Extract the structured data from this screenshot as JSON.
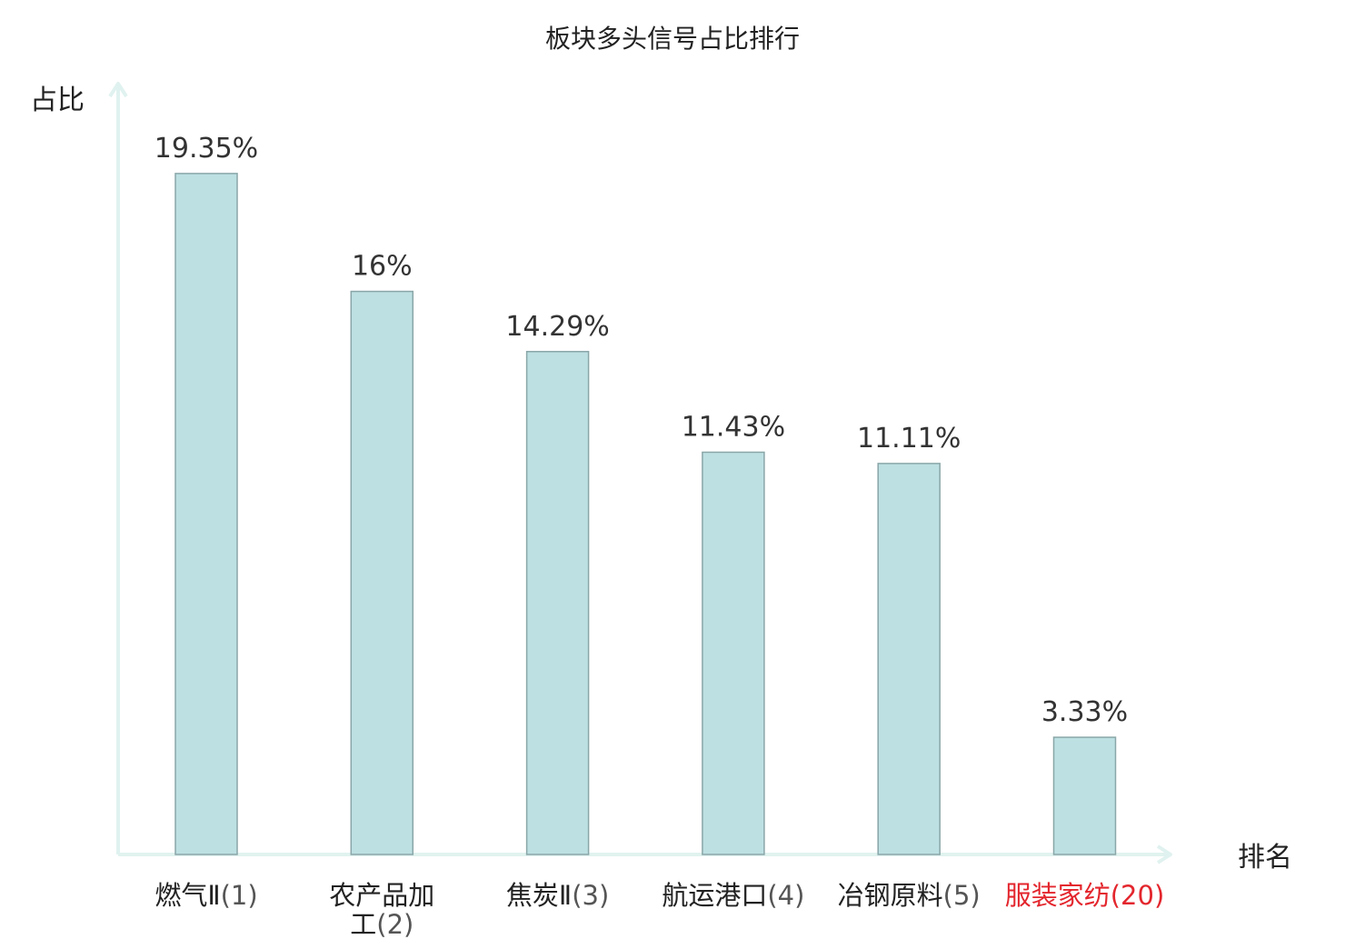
{
  "chart_data": {
    "type": "bar",
    "title": "板块多头信号占比排行",
    "xlabel": "排名",
    "ylabel": "占比",
    "ylim": [
      0,
      21
    ],
    "grid": false,
    "categories": [
      {
        "name": "燃气Ⅱ",
        "rank": "(1)",
        "highlight": false
      },
      {
        "name": "农产品加工",
        "rank": "(2)",
        "highlight": false
      },
      {
        "name": "焦炭Ⅱ",
        "rank": "(3)",
        "highlight": false
      },
      {
        "name": "航运港口",
        "rank": "(4)",
        "highlight": false
      },
      {
        "name": "冶钢原料",
        "rank": "(5)",
        "highlight": false
      },
      {
        "name": "服装家纺",
        "rank": "(20)",
        "highlight": true
      }
    ],
    "values": [
      19.35,
      16,
      14.29,
      11.43,
      11.11,
      3.33
    ],
    "value_labels": [
      "19.35%",
      "16%",
      "14.29%",
      "11.43%",
      "11.11%",
      "3.33%"
    ]
  },
  "colors": {
    "bar_fill": "#bde0e3",
    "bar_stroke": "#8aa6a8",
    "axis": "#e0f2ef",
    "text": "#222222",
    "value_label": "#333333",
    "rank_text": "#555555",
    "highlight": "#e3262d"
  }
}
